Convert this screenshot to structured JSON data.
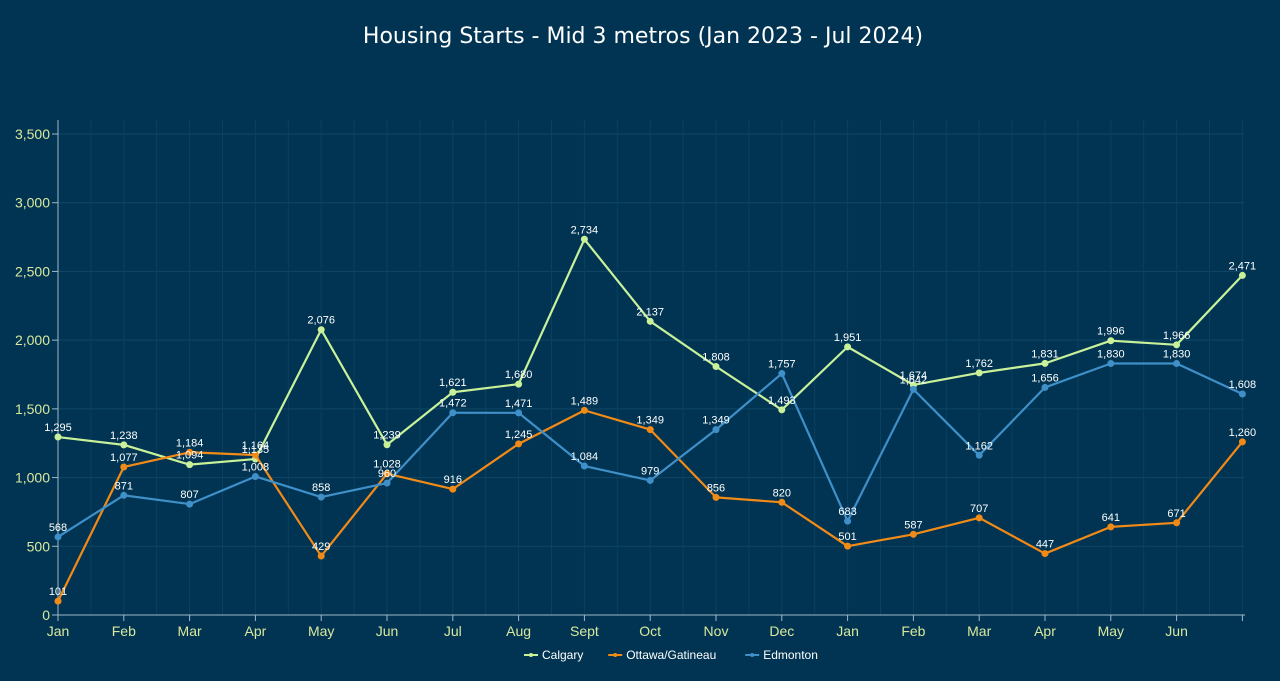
{
  "chart_data": {
    "type": "line",
    "title": "Housing Starts - Mid 3 metros (Jan 2023 - Jul 2024)",
    "x": [
      "Jan",
      "Feb",
      "Mar",
      "Apr",
      "May",
      "Jun",
      "Jul",
      "Aug",
      "Sept",
      "Oct",
      "Nov",
      "Dec",
      "Jan",
      "Feb",
      "Mar",
      "Apr",
      "May",
      "Jun",
      ""
    ],
    "ylim": [
      0,
      3600
    ],
    "yticks": [
      0,
      500,
      1000,
      1500,
      2000,
      2500,
      3000,
      3500
    ],
    "ytick_labels": [
      "0",
      "500",
      "1,000",
      "1,500",
      "2,000",
      "2,500",
      "3,000",
      "3,500"
    ],
    "grid": true,
    "legend_position": "bottom",
    "series": [
      {
        "name": "Calgary",
        "color": "#c8f19a",
        "values": [
          1295,
          1238,
          1094,
          1135,
          2076,
          1239,
          1621,
          1680,
          2734,
          2137,
          1808,
          1493,
          1951,
          1674,
          1762,
          1831,
          1996,
          1966,
          2471
        ],
        "labels": [
          "1,295",
          "1,238",
          "1,094",
          "1,135",
          "2,076",
          "1,239",
          "1,621",
          "1,680",
          "2,734",
          "2,137",
          "1,808",
          "1,493",
          "1,951",
          "1,674",
          "1,762",
          "1,831",
          "1,996",
          "1,966",
          "2,471"
        ]
      },
      {
        "name": "Ottawa/Gatineau",
        "color": "#f28a17",
        "values": [
          101,
          1077,
          1184,
          1164,
          429,
          1028,
          916,
          1245,
          1489,
          1349,
          856,
          820,
          501,
          587,
          707,
          447,
          641,
          671,
          1260
        ],
        "labels": [
          "101",
          "1,077",
          "1,184",
          "1,164",
          "429",
          "1,028",
          "916",
          "1,245",
          "1,489",
          "1,349",
          "856",
          "820",
          "501",
          "587",
          "707",
          "447",
          "641",
          "671",
          "1,260"
        ]
      },
      {
        "name": "Edmonton",
        "color": "#3f8fc9",
        "values": [
          568,
          871,
          807,
          1008,
          858,
          960,
          1472,
          1471,
          1084,
          979,
          1349,
          1757,
          683,
          1642,
          1162,
          1656,
          1830,
          1830,
          1608
        ],
        "labels": [
          "568",
          "871",
          "807",
          "1,008",
          "858",
          "960",
          "1,472",
          "1,471",
          "1,084",
          "979",
          "1,349",
          "1,757",
          "683",
          "1,642",
          "1,162",
          "1,656",
          "1,830",
          "1,830",
          "1,608"
        ]
      }
    ]
  }
}
